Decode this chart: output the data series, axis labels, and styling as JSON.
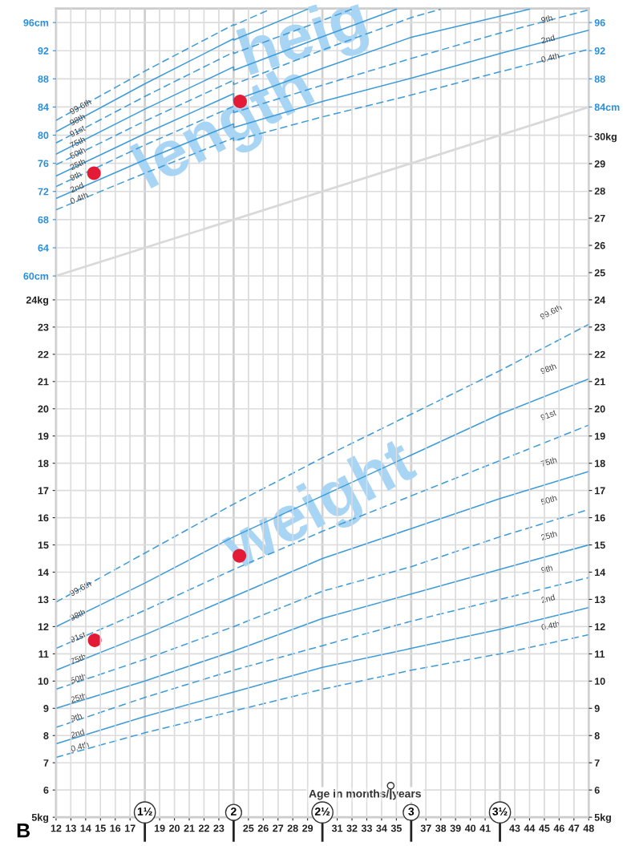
{
  "chart_data": [
    {
      "type": "line",
      "annotations": [
        "length",
        "heig"
      ],
      "xlim": [
        12,
        48
      ],
      "tick_labels": "y",
      "xticks": [
        12,
        13,
        14,
        15,
        16,
        17,
        19,
        20,
        21,
        22,
        23,
        25,
        26,
        27,
        28,
        29,
        31,
        32,
        33,
        34,
        35,
        37,
        38,
        39,
        40,
        41,
        43,
        44,
        45,
        46,
        47,
        48
      ],
      "ylim": [
        -16.9,
        98.0
      ],
      "yticks": [
        {
          "value": 60,
          "label": "60cm"
        },
        64,
        68,
        72,
        76,
        80,
        84,
        88,
        92,
        {
          "value": 96,
          "label": "96cm"
        }
      ],
      "y2lim": [
        -16.9,
        98.0
      ],
      "y2ticks": [
        {
          "value": 84,
          "label": "84cm"
        },
        88,
        92,
        96
      ],
      "grid": true,
      "series": [
        {
          "name": "99.6th",
          "color": "#3d9bd8",
          "line_style": "dashed",
          "x": [
            12,
            18,
            24,
            24,
            26.5
          ],
          "values": [
            82.1,
            89.1,
            95.7,
            95.6,
            97.9
          ]
        },
        {
          "name": "98th",
          "color": "#3d9bd8",
          "line_style": "solid",
          "x": [
            12,
            18,
            24,
            24,
            29
          ],
          "values": [
            80.5,
            87.3,
            93.7,
            93.5,
            97.9
          ]
        },
        {
          "name": "91st",
          "color": "#3d9bd8",
          "line_style": "dashed",
          "x": [
            12,
            18,
            24,
            24,
            30,
            32
          ],
          "values": [
            78.9,
            85.5,
            91.8,
            91.6,
            96.3,
            97.9
          ]
        },
        {
          "name": "75th",
          "color": "#3d9bd8",
          "line_style": "solid",
          "x": [
            12,
            18,
            24,
            24,
            30,
            35
          ],
          "values": [
            77.3,
            83.7,
            89.7,
            89.2,
            94.0,
            97.9
          ]
        },
        {
          "name": "50th",
          "color": "#3d9bd8",
          "line_style": "dashed",
          "x": [
            12,
            18,
            24,
            24,
            30,
            36,
            38
          ],
          "values": [
            75.8,
            82.0,
            87.8,
            87.2,
            92.1,
            96.7,
            97.9
          ]
        },
        {
          "name": "25th",
          "color": "#3d9bd8",
          "line_style": "solid",
          "x": [
            12,
            18,
            24,
            24,
            30,
            36,
            42,
            44
          ],
          "values": [
            74.2,
            80.2,
            85.9,
            84.9,
            89.5,
            93.9,
            96.9,
            97.9
          ]
        },
        {
          "name": "9th",
          "color": "#3d9bd8",
          "line_style": "dashed",
          "x": [
            12,
            18,
            24,
            24,
            30,
            36,
            42,
            48
          ],
          "values": [
            72.7,
            78.6,
            84.1,
            83.2,
            87.1,
            90.9,
            94.5,
            97.8
          ]
        },
        {
          "name": "2nd",
          "color": "#3d9bd8",
          "line_style": "solid",
          "x": [
            12,
            18,
            24,
            24,
            30,
            36,
            42,
            48
          ],
          "values": [
            71.0,
            76.5,
            81.6,
            81.1,
            84.8,
            88.1,
            91.6,
            94.9
          ]
        },
        {
          "name": "0.4th",
          "color": "#3d9bd8",
          "line_style": "dashed",
          "x": [
            12,
            18,
            24,
            24,
            30,
            36,
            42,
            48
          ],
          "values": [
            69.4,
            74.6,
            79.6,
            79.2,
            82.6,
            85.7,
            89.0,
            92.2
          ]
        },
        {
          "color": "#d9d9d9",
          "line_style": "solid",
          "x": [
            12,
            48
          ],
          "values": [
            60,
            84
          ]
        },
        {
          "type": "scatter",
          "marker": "circle",
          "color": "#e31b37",
          "x": [
            14.56,
            24.44
          ],
          "values": [
            74.6,
            84.8
          ]
        }
      ]
    },
    {
      "type": "line",
      "xlabel": "Age in months/ years",
      "annotations": [
        "weight",
        "B"
      ],
      "xlim": [
        12,
        48
      ],
      "xticks": [
        12,
        13,
        14,
        15,
        16,
        17,
        19,
        20,
        21,
        22,
        23,
        25,
        26,
        27,
        28,
        29,
        31,
        32,
        33,
        34,
        35,
        37,
        38,
        39,
        40,
        41,
        43,
        44,
        45,
        46,
        47,
        48
      ],
      "x2lim": [
        1,
        4
      ],
      "x2ticks": [
        {
          "value": 1.5,
          "label": "1½"
        },
        2,
        {
          "value": 2.5,
          "label": "2½"
        },
        3,
        {
          "value": 3.5,
          "label": "3½"
        }
      ],
      "ylim": [
        5,
        34.7
      ],
      "yticks": [
        {
          "value": 5,
          "label": "5kg"
        },
        6,
        7,
        8,
        9,
        10,
        11,
        12,
        13,
        14,
        15,
        16,
        17,
        18,
        19,
        20,
        21,
        22,
        23,
        {
          "value": 24,
          "label": "24kg"
        }
      ],
      "y2lim": [
        5,
        34.7
      ],
      "y2ticks": [
        {
          "value": 5,
          "label": "5kg"
        },
        6,
        7,
        8,
        9,
        10,
        11,
        12,
        13,
        14,
        15,
        16,
        17,
        18,
        19,
        20,
        21,
        22,
        23,
        24,
        25,
        26,
        27,
        28,
        29,
        {
          "value": 30,
          "label": "30kg"
        }
      ],
      "grid": true,
      "series": [
        {
          "name": "99.6th",
          "color": "#3d9bd8",
          "line_style": "dashed",
          "x": [
            12,
            18,
            24,
            30,
            36,
            42,
            48
          ],
          "values": [
            12.9,
            14.7,
            16.5,
            18.2,
            19.8,
            21.4,
            23.1
          ]
        },
        {
          "name": "98th",
          "color": "#3d9bd8",
          "line_style": "solid",
          "x": [
            12,
            18,
            24,
            30,
            36,
            42,
            48
          ],
          "values": [
            12.0,
            13.6,
            15.3,
            16.8,
            18.3,
            19.8,
            21.1
          ]
        },
        {
          "name": "91st",
          "color": "#3d9bd8",
          "line_style": "dashed",
          "x": [
            12,
            18,
            24,
            30,
            36,
            42,
            48
          ],
          "values": [
            11.2,
            12.6,
            14.1,
            15.5,
            16.8,
            18.1,
            19.4
          ]
        },
        {
          "name": "75th",
          "color": "#3d9bd8",
          "line_style": "solid",
          "x": [
            12,
            18,
            24,
            30,
            36,
            42,
            48
          ],
          "values": [
            10.4,
            11.7,
            13.1,
            14.5,
            15.6,
            16.7,
            17.7
          ]
        },
        {
          "name": "50th",
          "color": "#3d9bd8",
          "line_style": "dashed",
          "x": [
            12,
            18,
            24,
            30,
            36,
            42,
            48
          ],
          "values": [
            9.7,
            10.8,
            12.0,
            13.3,
            14.2,
            15.3,
            16.3
          ]
        },
        {
          "name": "25th",
          "color": "#3d9bd8",
          "line_style": "solid",
          "x": [
            12,
            18,
            24,
            30,
            36,
            42,
            48
          ],
          "values": [
            9.0,
            10.0,
            11.1,
            12.3,
            13.2,
            14.1,
            15.0
          ]
        },
        {
          "name": "9th",
          "color": "#3d9bd8",
          "line_style": "dashed",
          "x": [
            12,
            18,
            24,
            30,
            36,
            42,
            48
          ],
          "values": [
            8.3,
            9.4,
            10.4,
            11.3,
            12.2,
            13.0,
            13.8
          ]
        },
        {
          "name": "2nd",
          "color": "#3d9bd8",
          "line_style": "solid",
          "x": [
            12,
            18,
            24,
            30,
            36,
            42,
            48
          ],
          "values": [
            7.7,
            8.7,
            9.6,
            10.5,
            11.2,
            11.9,
            12.7
          ]
        },
        {
          "name": "0.4th",
          "color": "#3d9bd8",
          "line_style": "dashed",
          "x": [
            12,
            18,
            24,
            30,
            36,
            42,
            48
          ],
          "values": [
            7.2,
            8.1,
            8.9,
            9.7,
            10.4,
            11.0,
            11.7
          ]
        },
        {
          "type": "scatter",
          "marker": "circle",
          "color": "#e31b37",
          "x": [
            14.61,
            24.39
          ],
          "values": [
            11.5,
            14.6
          ]
        }
      ]
    }
  ]
}
